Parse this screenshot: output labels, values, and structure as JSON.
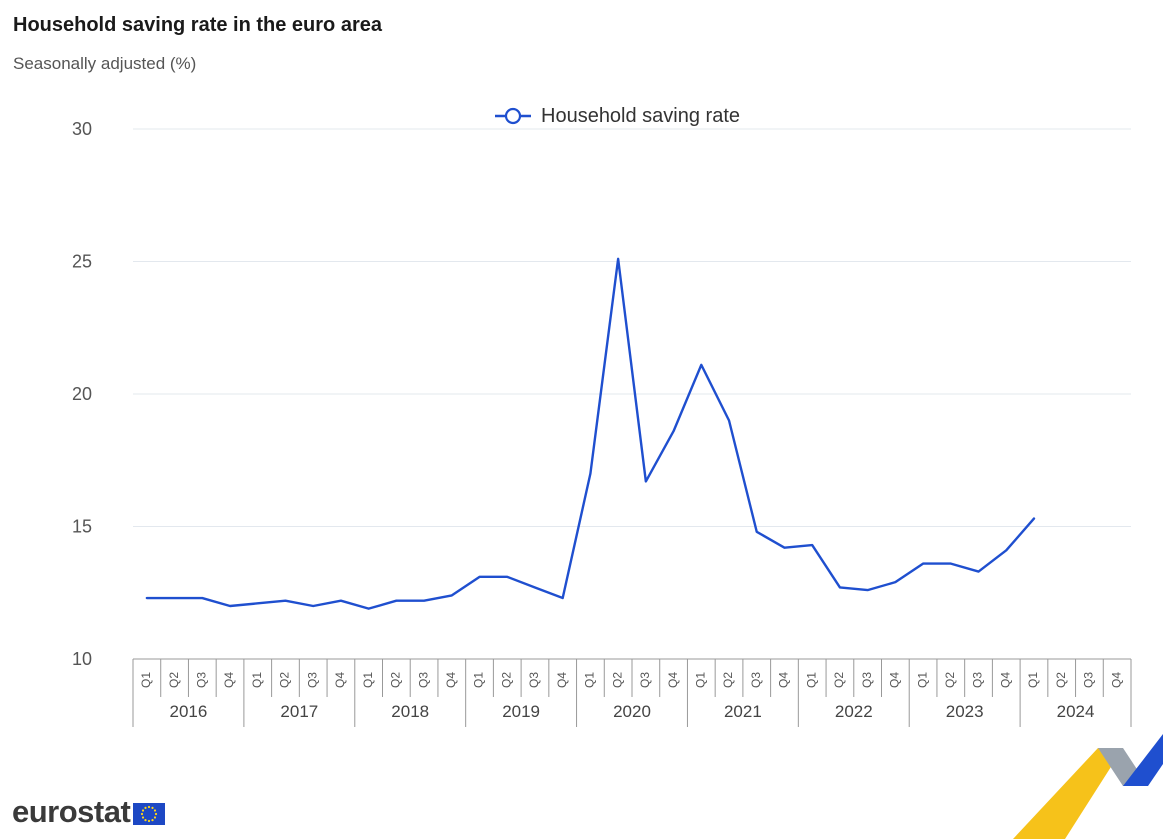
{
  "chart_data": {
    "type": "line",
    "title": "Household saving rate in the euro area",
    "subtitle": "Seasonally adjusted (%)",
    "ylim": [
      10,
      30
    ],
    "yticks": [
      10,
      15,
      20,
      25,
      30
    ],
    "grid": true,
    "legend": "top-center",
    "years": [
      "2016",
      "2017",
      "2018",
      "2019",
      "2020",
      "2021",
      "2022",
      "2023",
      "2024"
    ],
    "quarters": [
      "Q1",
      "Q2",
      "Q3",
      "Q4"
    ],
    "series": [
      {
        "name": "Household saving rate",
        "color": "#1f4fcf",
        "values": [
          12.3,
          12.3,
          12.3,
          12.0,
          12.1,
          12.2,
          12.0,
          12.2,
          11.9,
          12.2,
          12.2,
          12.4,
          13.1,
          13.1,
          12.7,
          12.3,
          17.0,
          25.1,
          16.7,
          18.6,
          21.1,
          19.0,
          14.8,
          14.2,
          14.3,
          12.7,
          12.6,
          12.9,
          13.6,
          13.6,
          13.3,
          14.1,
          15.3,
          null,
          null,
          null
        ]
      }
    ]
  },
  "branding": {
    "logo_text": "eurostat"
  }
}
